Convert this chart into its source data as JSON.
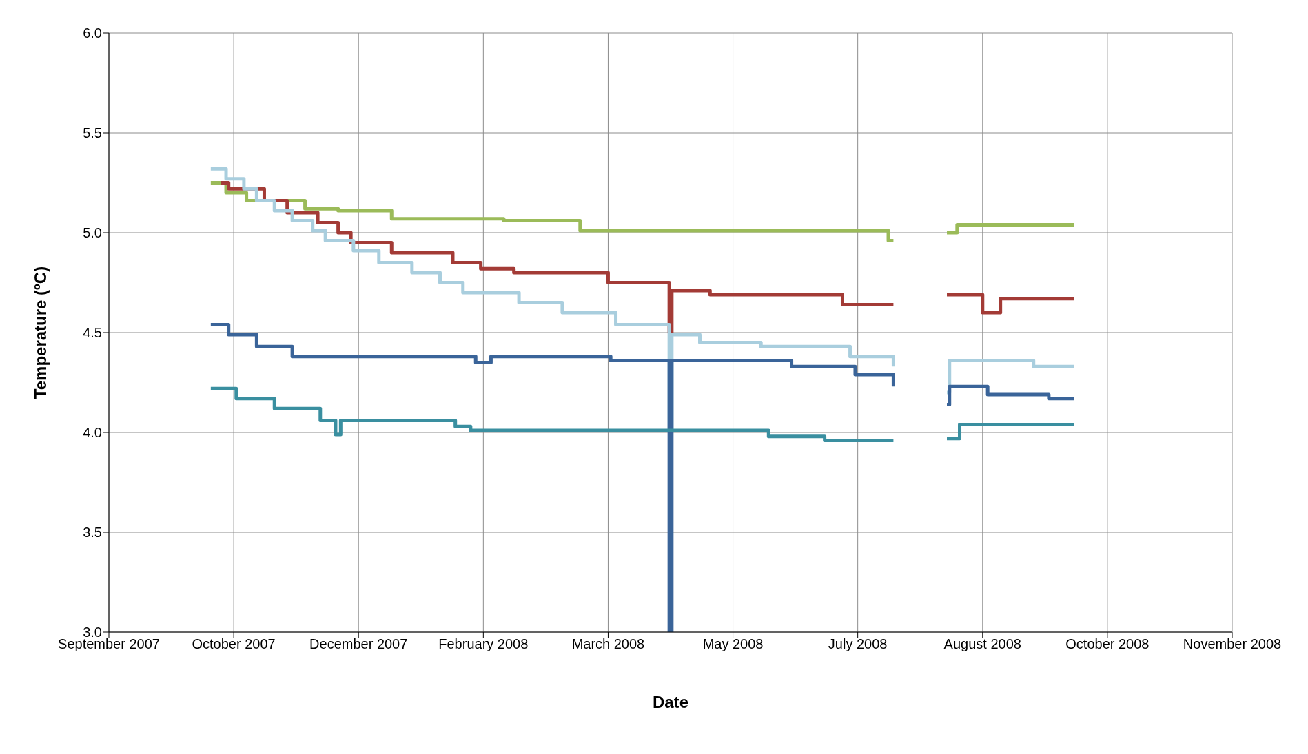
{
  "chart_data": {
    "type": "step",
    "xlabel": "Date",
    "ylabel": "Temperature (ºC)",
    "ylim": [
      3.0,
      6.0
    ],
    "yticks": [
      {
        "value": 3,
        "label": "3.0"
      },
      3.5,
      {
        "value": 4,
        "label": "4.0"
      },
      4.5,
      {
        "value": 5,
        "label": "5.0"
      },
      5.5,
      {
        "value": 6,
        "label": "6.0"
      }
    ],
    "xlim": [
      "2007-09-12",
      "2008-11-26"
    ],
    "xticks": [
      {
        "value": "2007-09-12",
        "label": "September 2007"
      },
      {
        "value": "2007-10-31",
        "label": "October 2007"
      },
      {
        "value": "2007-12-19",
        "label": "December 2007"
      },
      {
        "value": "2008-02-06",
        "label": "February 2008"
      },
      {
        "value": "2008-03-26",
        "label": "March 2008"
      },
      {
        "value": "2008-05-14",
        "label": "May 2008"
      },
      {
        "value": "2008-07-02",
        "label": "July 2008"
      },
      {
        "value": "2008-08-20",
        "label": "August 2008"
      },
      {
        "value": "2008-10-08",
        "label": "October 2008"
      },
      {
        "value": "2008-11-26",
        "label": "November 2008"
      }
    ],
    "grid": true,
    "line_style": "solid",
    "marker": "none",
    "series": [
      {
        "color": "#9bbb59",
        "x": [
          "2007-10-22",
          "2007-10-28",
          "2007-11-05",
          "2007-11-28",
          "2007-12-11",
          "2008-01-01",
          "2008-02-14",
          "2008-03-15",
          "2008-07-14",
          "2008-07-16",
          "2008-07-25",
          "2008-08-06",
          "2008-08-10",
          "2008-09-25"
        ],
        "values": [
          5.25,
          5.2,
          5.16,
          5.12,
          5.11,
          5.07,
          5.06,
          5.01,
          4.96,
          4.96,
          null,
          5.0,
          5.04,
          5.04
        ]
      },
      {
        "color": "#a33b36",
        "x": [
          "2007-10-26",
          "2007-10-29",
          "2007-11-12",
          "2007-11-21",
          "2007-12-03",
          "2007-12-11",
          "2007-12-16",
          "2008-01-01",
          "2008-01-25",
          "2008-02-05",
          "2008-02-18",
          "2008-03-26",
          "2008-04-19",
          "2008-04-20",
          "2008-05-05",
          "2008-06-26",
          "2008-07-16",
          "2008-07-25",
          "2008-08-06",
          "2008-08-20",
          "2008-08-27",
          "2008-09-25"
        ],
        "values": [
          5.25,
          5.22,
          5.16,
          5.1,
          5.05,
          5.0,
          4.95,
          4.9,
          4.85,
          4.82,
          4.8,
          4.75,
          4.5,
          4.71,
          4.69,
          4.64,
          4.64,
          null,
          4.69,
          4.6,
          4.67,
          4.67
        ]
      },
      {
        "color": "#a9cede",
        "x": [
          "2007-10-22",
          "2007-10-28",
          "2007-11-04",
          "2007-11-09",
          "2007-11-16",
          "2007-11-23",
          "2007-12-01",
          "2007-12-06",
          "2007-12-17",
          "2007-12-27",
          "2008-01-09",
          "2008-01-20",
          "2008-01-29",
          "2008-02-20",
          "2008-03-08",
          "2008-03-29",
          "2008-04-19",
          "2008-04-20",
          "2008-05-01",
          "2008-05-25",
          "2008-06-29",
          "2008-07-16",
          "2008-07-25",
          "2008-08-06",
          "2008-08-07",
          "2008-09-09",
          "2008-09-25"
        ],
        "values": [
          5.32,
          5.27,
          5.22,
          5.16,
          5.11,
          5.06,
          5.01,
          4.96,
          4.91,
          4.85,
          4.8,
          4.75,
          4.7,
          4.65,
          4.6,
          4.54,
          4.0,
          4.49,
          4.45,
          4.43,
          4.38,
          4.33,
          null,
          4.2,
          4.36,
          4.33,
          4.33
        ]
      },
      {
        "color": "#3a6499",
        "x": [
          "2007-10-22",
          "2007-10-29",
          "2007-11-09",
          "2007-11-23",
          "2008-02-03",
          "2008-02-09",
          "2008-03-27",
          "2008-04-19",
          "2008-04-20",
          "2008-06-06",
          "2008-07-01",
          "2008-07-16",
          "2008-07-25",
          "2008-08-06",
          "2008-08-07",
          "2008-08-22",
          "2008-09-15",
          "2008-09-25"
        ],
        "values": [
          4.54,
          4.49,
          4.43,
          4.38,
          4.35,
          4.38,
          4.36,
          3.0,
          4.36,
          4.33,
          4.29,
          4.23,
          null,
          4.14,
          4.23,
          4.19,
          4.17,
          4.17
        ]
      },
      {
        "color": "#3a8fa0",
        "x": [
          "2007-10-22",
          "2007-11-01",
          "2007-11-16",
          "2007-12-04",
          "2007-12-10",
          "2007-12-12",
          "2008-01-26",
          "2008-02-01",
          "2008-05-28",
          "2008-06-19",
          "2008-07-16",
          "2008-07-25",
          "2008-08-06",
          "2008-08-11",
          "2008-09-25"
        ],
        "values": [
          4.22,
          4.17,
          4.12,
          4.06,
          3.99,
          4.06,
          4.03,
          4.01,
          3.98,
          3.96,
          3.96,
          null,
          3.97,
          4.04,
          4.04
        ]
      }
    ]
  }
}
